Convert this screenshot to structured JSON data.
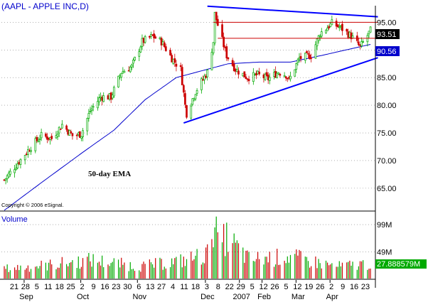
{
  "chart_data": {
    "type": "candlestick",
    "title": "(AAPL - APPLE INC,D)",
    "copyright": "Copyright © 2006 eSignal.",
    "annotation": "50-day EMA",
    "price_axis": {
      "ylim": [
        61,
        98
      ],
      "ticks": [
        65,
        70,
        75,
        80,
        85,
        90,
        95
      ],
      "tick_labels": [
        "65.00",
        "70.00",
        "75.00",
        "80.00",
        "85.00",
        "90.00",
        "95.00"
      ],
      "last_price_label": "93.51",
      "ema_value_label": "90.56",
      "last_price": 93.51,
      "ema_value": 90.56
    },
    "volume_panel": {
      "label": "Volume",
      "ylim": [
        0,
        120
      ],
      "ticks": [
        49,
        99
      ],
      "tick_labels": [
        "49M",
        "99M"
      ],
      "last_volume_label": "27.888579M",
      "last_volume": 27.888579,
      "units": "millions"
    },
    "x_axis": {
      "day_labels": [
        "21",
        "28",
        "5",
        "11",
        "18",
        "25",
        "2",
        "9",
        "16",
        "23",
        "30",
        "6",
        "13",
        "27",
        "4",
        "11",
        "18",
        "3",
        "8",
        "22",
        "29",
        "5",
        "12",
        "26",
        "5",
        "12",
        "19",
        "26",
        "2",
        "9",
        "16",
        "23"
      ],
      "month_labels": [
        "Sep",
        "Oct",
        "Nov",
        "Dec",
        "2007",
        "Feb",
        "Mar",
        "Apr"
      ],
      "first_date": "2006-08-21",
      "last_date": "2007-04-25"
    },
    "trendlines": [
      {
        "name": "resistance",
        "color": "#0000ff",
        "from": [
          "2007-01-05",
          97.9
        ],
        "to": [
          "2007-04-30",
          96.0
        ]
      },
      {
        "name": "support",
        "color": "#0000ff",
        "from": [
          "2006-12-20",
          76.8
        ],
        "to": [
          "2007-04-30",
          88.6
        ]
      }
    ],
    "horizontal_levels": [
      {
        "value": 95.0,
        "color": "#cc0000",
        "from": "2007-01-09",
        "to": "2007-04-30"
      },
      {
        "value": 92.1,
        "color": "#cc0000",
        "from": "2007-01-12",
        "to": "2007-04-30"
      }
    ],
    "colors": {
      "up": "#00aa00",
      "down": "#cc0000",
      "ema": "#0000cc",
      "trend": "#0000ff",
      "grid": "#808080",
      "last_price_bg": "#000000",
      "ema_label_bg": "#0000cc",
      "volume_label_bg": "#00aa00"
    },
    "anchors": [
      {
        "date": "2006-08-21",
        "price": 66.5
      },
      {
        "date": "2006-09-08",
        "price": 72.5
      },
      {
        "date": "2006-09-15",
        "price": 74.5
      },
      {
        "date": "2006-09-22",
        "price": 74.0
      },
      {
        "date": "2006-09-29",
        "price": 76.5
      },
      {
        "date": "2006-10-06",
        "price": 74.5
      },
      {
        "date": "2006-10-12",
        "price": 74.8
      },
      {
        "date": "2006-10-18",
        "price": 79.0
      },
      {
        "date": "2006-10-25",
        "price": 81.5
      },
      {
        "date": "2006-11-01",
        "price": 81.5
      },
      {
        "date": "2006-11-08",
        "price": 86.0
      },
      {
        "date": "2006-11-15",
        "price": 87.0
      },
      {
        "date": "2006-11-22",
        "price": 91.5
      },
      {
        "date": "2006-11-29",
        "price": 92.5
      },
      {
        "date": "2006-12-05",
        "price": 91.5
      },
      {
        "date": "2006-12-12",
        "price": 88.5
      },
      {
        "date": "2006-12-18",
        "price": 86.5
      },
      {
        "date": "2006-12-21",
        "price": 80.0
      },
      {
        "date": "2006-12-22",
        "price": 78.5
      },
      {
        "date": "2006-12-28",
        "price": 82.5
      },
      {
        "date": "2007-01-05",
        "price": 86.0
      },
      {
        "date": "2007-01-09",
        "price": 91.5
      },
      {
        "date": "2007-01-10",
        "price": 96.5
      },
      {
        "date": "2007-01-12",
        "price": 94.5
      },
      {
        "date": "2007-01-18",
        "price": 89.0
      },
      {
        "date": "2007-01-24",
        "price": 86.5
      },
      {
        "date": "2007-02-01",
        "price": 85.0
      },
      {
        "date": "2007-02-08",
        "price": 85.5
      },
      {
        "date": "2007-02-15",
        "price": 84.8
      },
      {
        "date": "2007-02-22",
        "price": 86.0
      },
      {
        "date": "2007-02-27",
        "price": 85.5
      },
      {
        "date": "2007-03-01",
        "price": 84.5
      },
      {
        "date": "2007-03-08",
        "price": 88.5
      },
      {
        "date": "2007-03-16",
        "price": 89.0
      },
      {
        "date": "2007-03-22",
        "price": 93.0
      },
      {
        "date": "2007-03-30",
        "price": 94.8
      },
      {
        "date": "2007-04-05",
        "price": 94.0
      },
      {
        "date": "2007-04-12",
        "price": 92.5
      },
      {
        "date": "2007-04-18",
        "price": 90.5
      },
      {
        "date": "2007-04-25",
        "price": 93.5
      }
    ],
    "ema_anchors": [
      {
        "date": "2006-08-21",
        "price": 61.0
      },
      {
        "date": "2006-09-15",
        "price": 66.0
      },
      {
        "date": "2006-10-13",
        "price": 71.5
      },
      {
        "date": "2006-11-03",
        "price": 75.5
      },
      {
        "date": "2006-11-24",
        "price": 81.0
      },
      {
        "date": "2006-12-15",
        "price": 85.0
      },
      {
        "date": "2006-12-29",
        "price": 86.0
      },
      {
        "date": "2007-01-19",
        "price": 87.5
      },
      {
        "date": "2007-02-09",
        "price": 87.8
      },
      {
        "date": "2007-03-02",
        "price": 87.8
      },
      {
        "date": "2007-03-23",
        "price": 89.0
      },
      {
        "date": "2007-04-25",
        "price": 91.0
      }
    ],
    "volume_anchors": [
      {
        "date": "2006-08-21",
        "volume": 18
      },
      {
        "date": "2006-09-20",
        "volume": 25
      },
      {
        "date": "2006-10-19",
        "volume": 34
      },
      {
        "date": "2006-11-20",
        "volume": 22
      },
      {
        "date": "2006-12-20",
        "volume": 33
      },
      {
        "date": "2007-01-05",
        "volume": 45
      },
      {
        "date": "2007-01-10",
        "volume": 118
      },
      {
        "date": "2007-01-12",
        "volume": 60
      },
      {
        "date": "2007-01-18",
        "volume": 75
      },
      {
        "date": "2007-02-02",
        "volume": 35
      },
      {
        "date": "2007-03-02",
        "volume": 40
      },
      {
        "date": "2007-04-02",
        "volume": 22
      },
      {
        "date": "2007-04-25",
        "volume": 27.9
      }
    ]
  }
}
